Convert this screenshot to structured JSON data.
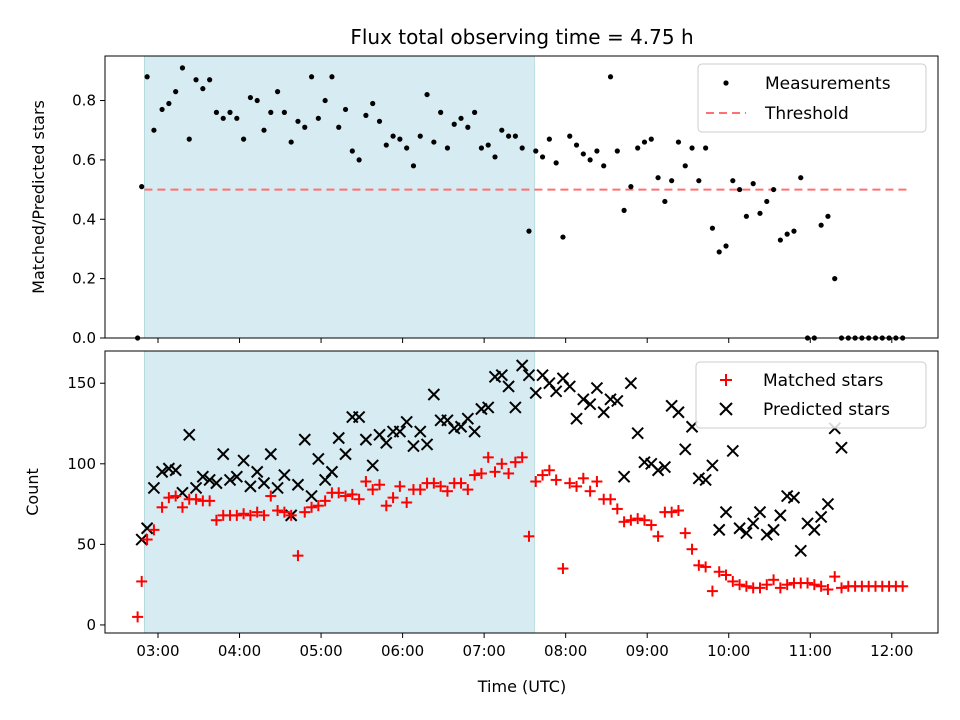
{
  "title": "Flux total observing time = 4.75 h",
  "xlabel": "Time (UTC)",
  "colors": {
    "shade": "#add8e6",
    "threshold": "#ff7070",
    "matched": "#ff0000",
    "predicted": "#000000",
    "measurements": "#000000"
  },
  "chart_data": [
    {
      "type": "scatter",
      "ylabel": "Matched/Predicted stars",
      "ylim": [
        0,
        0.95
      ],
      "xlim": [
        "02:21",
        "12:34"
      ],
      "yticks": [
        0.0,
        0.2,
        0.4,
        0.6,
        0.8
      ],
      "xticks": [
        "03:00",
        "04:00",
        "05:00",
        "06:00",
        "07:00",
        "08:00",
        "09:00",
        "10:00",
        "11:00",
        "12:00"
      ],
      "shaded_span": [
        "02:50",
        "07:37"
      ],
      "legend_position": "top-right",
      "series": [
        {
          "name": "Measurements",
          "marker": "dot",
          "x": [
            "02:45",
            "02:48",
            "02:52",
            "02:57",
            "03:03",
            "03:08",
            "03:13",
            "03:18",
            "03:23",
            "03:28",
            "03:33",
            "03:38",
            "03:43",
            "03:48",
            "03:53",
            "03:58",
            "04:03",
            "04:08",
            "04:13",
            "04:18",
            "04:23",
            "04:28",
            "04:33",
            "04:38",
            "04:43",
            "04:48",
            "04:53",
            "04:58",
            "05:03",
            "05:08",
            "05:13",
            "05:18",
            "05:23",
            "05:28",
            "05:33",
            "05:38",
            "05:43",
            "05:48",
            "05:53",
            "05:58",
            "06:03",
            "06:08",
            "06:13",
            "06:18",
            "06:23",
            "06:28",
            "06:33",
            "06:38",
            "06:43",
            "06:48",
            "06:53",
            "06:58",
            "07:03",
            "07:08",
            "07:13",
            "07:18",
            "07:23",
            "07:28",
            "07:33",
            "07:38",
            "07:43",
            "07:48",
            "07:53",
            "07:58",
            "08:03",
            "08:08",
            "08:13",
            "08:18",
            "08:23",
            "08:28",
            "08:33",
            "08:38",
            "08:43",
            "08:48",
            "08:53",
            "08:58",
            "09:03",
            "09:08",
            "09:13",
            "09:18",
            "09:23",
            "09:28",
            "09:33",
            "09:38",
            "09:43",
            "09:48",
            "09:53",
            "09:58",
            "10:03",
            "10:08",
            "10:13",
            "10:18",
            "10:23",
            "10:28",
            "10:33",
            "10:38",
            "10:43",
            "10:48",
            "10:53",
            "10:58",
            "11:03",
            "11:08",
            "11:13",
            "11:18",
            "11:23",
            "11:28",
            "11:33",
            "11:38",
            "11:43",
            "11:48",
            "11:53",
            "11:58",
            "12:03",
            "12:08"
          ],
          "y": [
            0.0,
            0.51,
            0.88,
            0.7,
            0.77,
            0.79,
            0.83,
            0.91,
            0.67,
            0.87,
            0.84,
            0.87,
            0.76,
            0.74,
            0.76,
            0.74,
            0.67,
            0.81,
            0.8,
            0.7,
            0.76,
            0.83,
            0.76,
            0.66,
            0.73,
            0.71,
            0.88,
            0.74,
            0.8,
            0.88,
            0.71,
            0.77,
            0.63,
            0.6,
            0.75,
            0.79,
            0.73,
            0.65,
            0.68,
            0.67,
            0.64,
            0.58,
            0.68,
            0.82,
            0.66,
            0.76,
            0.64,
            0.72,
            0.74,
            0.71,
            0.76,
            0.64,
            0.65,
            0.61,
            0.7,
            0.68,
            0.68,
            0.64,
            0.36,
            0.63,
            0.61,
            0.67,
            0.59,
            0.34,
            0.68,
            0.65,
            0.62,
            0.6,
            0.63,
            0.58,
            0.88,
            0.63,
            0.43,
            0.51,
            0.64,
            0.66,
            0.67,
            0.54,
            0.46,
            0.53,
            0.66,
            0.58,
            0.64,
            0.53,
            0.64,
            0.37,
            0.29,
            0.31,
            0.53,
            0.5,
            0.41,
            0.52,
            0.42,
            0.46,
            0.5,
            0.33,
            0.35,
            0.36,
            0.54,
            0.0,
            0.0,
            0.38,
            0.41,
            0.2,
            0.0,
            0.0,
            0.0,
            0.0,
            0.0,
            0.0,
            0.0,
            0.0,
            0.0,
            0.0
          ]
        },
        {
          "name": "Threshold",
          "marker": "dashed-line",
          "x": [
            "02:50",
            "12:13"
          ],
          "y": [
            0.5,
            0.5
          ]
        }
      ]
    },
    {
      "type": "scatter",
      "ylabel": "Count",
      "ylim": [
        -5,
        170
      ],
      "xlim": [
        "02:21",
        "12:34"
      ],
      "yticks": [
        0,
        50,
        100,
        150
      ],
      "xticks": [
        "03:00",
        "04:00",
        "05:00",
        "06:00",
        "07:00",
        "08:00",
        "09:00",
        "10:00",
        "11:00",
        "12:00"
      ],
      "shaded_span": [
        "02:50",
        "07:37"
      ],
      "legend_position": "top-right",
      "series": [
        {
          "name": "Matched stars",
          "marker": "plus",
          "x": [
            "02:45",
            "02:48",
            "02:52",
            "02:57",
            "03:03",
            "03:08",
            "03:13",
            "03:18",
            "03:23",
            "03:28",
            "03:33",
            "03:38",
            "03:43",
            "03:48",
            "03:53",
            "03:58",
            "04:03",
            "04:08",
            "04:13",
            "04:18",
            "04:23",
            "04:28",
            "04:33",
            "04:38",
            "04:43",
            "04:48",
            "04:53",
            "04:58",
            "05:03",
            "05:08",
            "05:13",
            "05:18",
            "05:23",
            "05:28",
            "05:33",
            "05:38",
            "05:43",
            "05:48",
            "05:53",
            "05:58",
            "06:03",
            "06:08",
            "06:13",
            "06:18",
            "06:23",
            "06:28",
            "06:33",
            "06:38",
            "06:43",
            "06:48",
            "06:53",
            "06:58",
            "07:03",
            "07:08",
            "07:13",
            "07:18",
            "07:23",
            "07:28",
            "07:33",
            "07:38",
            "07:43",
            "07:48",
            "07:53",
            "07:58",
            "08:03",
            "08:08",
            "08:13",
            "08:18",
            "08:23",
            "08:28",
            "08:33",
            "08:38",
            "08:43",
            "08:48",
            "08:53",
            "08:58",
            "09:03",
            "09:08",
            "09:13",
            "09:18",
            "09:23",
            "09:28",
            "09:33",
            "09:38",
            "09:43",
            "09:48",
            "09:53",
            "09:58",
            "10:03",
            "10:08",
            "10:13",
            "10:18",
            "10:23",
            "10:28",
            "10:33",
            "10:38",
            "10:43",
            "10:48",
            "10:53",
            "10:58",
            "11:03",
            "11:08",
            "11:13",
            "11:18",
            "11:23",
            "11:28",
            "11:33",
            "11:38",
            "11:43",
            "11:48",
            "11:53",
            "11:58",
            "12:03",
            "12:08"
          ],
          "y": [
            5,
            27,
            53,
            59,
            73,
            79,
            80,
            73,
            78,
            78,
            77,
            77,
            65,
            68,
            68,
            68,
            69,
            68,
            70,
            68,
            80,
            71,
            70,
            68,
            43,
            70,
            73,
            74,
            77,
            82,
            82,
            80,
            81,
            78,
            89,
            84,
            87,
            74,
            79,
            86,
            76,
            84,
            84,
            88,
            88,
            86,
            83,
            88,
            88,
            84,
            93,
            94,
            104,
            95,
            100,
            94,
            101,
            104,
            55,
            89,
            93,
            96,
            90,
            35,
            88,
            86,
            91,
            83,
            89,
            78,
            78,
            72,
            64,
            65,
            66,
            65,
            62,
            55,
            70,
            70,
            71,
            57,
            47,
            37,
            36,
            21,
            33,
            31,
            27,
            25,
            24,
            23,
            23,
            25,
            28,
            23,
            25,
            26,
            26,
            26,
            25,
            24,
            22,
            30,
            23,
            24,
            24,
            24,
            24,
            24,
            24,
            24,
            24,
            24
          ]
        },
        {
          "name": "Predicted stars",
          "marker": "x",
          "x": [
            "02:48",
            "02:52",
            "02:57",
            "03:03",
            "03:08",
            "03:13",
            "03:18",
            "03:23",
            "03:28",
            "03:33",
            "03:38",
            "03:43",
            "03:48",
            "03:53",
            "03:58",
            "04:03",
            "04:08",
            "04:13",
            "04:18",
            "04:23",
            "04:28",
            "04:33",
            "04:38",
            "04:43",
            "04:48",
            "04:53",
            "04:58",
            "05:03",
            "05:08",
            "05:13",
            "05:18",
            "05:23",
            "05:28",
            "05:33",
            "05:38",
            "05:43",
            "05:48",
            "05:53",
            "05:58",
            "06:03",
            "06:08",
            "06:13",
            "06:18",
            "06:23",
            "06:28",
            "06:33",
            "06:38",
            "06:43",
            "06:48",
            "06:53",
            "06:58",
            "07:03",
            "07:08",
            "07:13",
            "07:18",
            "07:23",
            "07:28",
            "07:33",
            "07:38",
            "07:43",
            "07:48",
            "07:53",
            "07:58",
            "08:03",
            "08:08",
            "08:13",
            "08:18",
            "08:23",
            "08:28",
            "08:33",
            "08:38",
            "08:43",
            "08:48",
            "08:53",
            "08:58",
            "09:03",
            "09:08",
            "09:13",
            "09:18",
            "09:23",
            "09:28",
            "09:33",
            "09:38",
            "09:43",
            "09:48",
            "09:53",
            "09:58",
            "10:03",
            "10:08",
            "10:13",
            "10:18",
            "10:23",
            "10:28",
            "10:33",
            "10:38",
            "10:43",
            "10:48",
            "10:53",
            "10:58",
            "11:03",
            "11:08",
            "11:13",
            "11:18",
            "11:23"
          ],
          "y": [
            53,
            60,
            85,
            95,
            97,
            96,
            82,
            118,
            85,
            92,
            90,
            88,
            106,
            90,
            92,
            102,
            86,
            95,
            88,
            106,
            85,
            93,
            68,
            87,
            115,
            80,
            103,
            90,
            95,
            116,
            106,
            129,
            129,
            115,
            99,
            118,
            113,
            120,
            120,
            126,
            111,
            120,
            112,
            143,
            127,
            127,
            122,
            123,
            128,
            120,
            134,
            135,
            154,
            155,
            148,
            135,
            161,
            155,
            144,
            155,
            150,
            145,
            153,
            148,
            128,
            140,
            137,
            147,
            132,
            140,
            139,
            92,
            150,
            119,
            101,
            100,
            96,
            98,
            136,
            132,
            109,
            123,
            91,
            90,
            99,
            59,
            70,
            108,
            60,
            57,
            63,
            70,
            56,
            59,
            68,
            80,
            79,
            46,
            63,
            59,
            67,
            75,
            122,
            110
          ]
        }
      ]
    }
  ]
}
